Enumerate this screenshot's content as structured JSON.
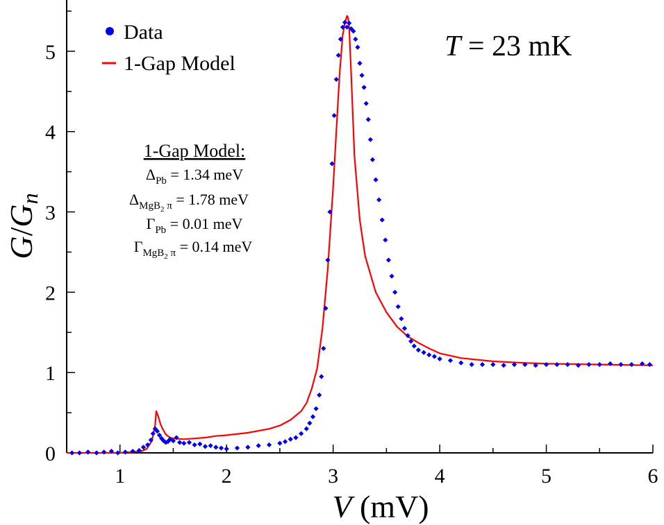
{
  "chart_data": {
    "type": "scatter",
    "title": "",
    "xlabel": {
      "var": "V",
      "unit": " (mV)"
    },
    "ylabel": {
      "num": "G",
      "slash": "/",
      "den": "G",
      "sub": "n"
    },
    "xlim": [
      0.5,
      6.0
    ],
    "ylim": [
      0,
      5.5
    ],
    "x_ticks": [
      1,
      2,
      3,
      4,
      5,
      6
    ],
    "y_ticks": [
      0,
      1,
      2,
      3,
      4,
      5
    ],
    "legend": {
      "placement": "top-left",
      "entries": [
        {
          "label": "Data",
          "marker": "dot"
        },
        {
          "label": "1-Gap Model",
          "marker": "line"
        }
      ]
    },
    "temperature": {
      "sym": "T",
      "rest": " = 23 mK"
    },
    "model_box": {
      "title": "1-Gap Model:",
      "lines": [
        {
          "sym": "Δ",
          "sub": "Pb",
          "subsub": "",
          "after": "",
          "rest": " = 1.34 meV"
        },
        {
          "sym": "Δ",
          "sub": "MgB",
          "subsub": "2",
          "after": " π",
          "rest": " = 1.78 meV"
        },
        {
          "sym": "Γ",
          "sub": "Pb",
          "subsub": "",
          "after": "",
          "rest": " = 0.01 meV"
        },
        {
          "sym": "Γ",
          "sub": "MgB",
          "subsub": "2",
          "after": " π",
          "rest": " = 0.14 meV"
        }
      ]
    },
    "series": [
      {
        "name": "Data",
        "kind": "scatter",
        "color": "#0000ee",
        "x": [
          0.55,
          0.62,
          0.7,
          0.78,
          0.85,
          0.92,
          0.98,
          1.05,
          1.12,
          1.18,
          1.22,
          1.26,
          1.29,
          1.31,
          1.33,
          1.35,
          1.37,
          1.39,
          1.41,
          1.43,
          1.45,
          1.47,
          1.5,
          1.53,
          1.56,
          1.6,
          1.65,
          1.7,
          1.75,
          1.8,
          1.85,
          1.9,
          1.95,
          2.0,
          2.1,
          2.2,
          2.3,
          2.4,
          2.5,
          2.55,
          2.6,
          2.65,
          2.7,
          2.75,
          2.78,
          2.81,
          2.84,
          2.87,
          2.89,
          2.91,
          2.93,
          2.95,
          2.97,
          2.99,
          3.01,
          3.03,
          3.05,
          3.07,
          3.09,
          3.11,
          3.13,
          3.15,
          3.17,
          3.19,
          3.21,
          3.23,
          3.25,
          3.27,
          3.29,
          3.31,
          3.33,
          3.35,
          3.37,
          3.4,
          3.43,
          3.46,
          3.49,
          3.52,
          3.55,
          3.58,
          3.61,
          3.64,
          3.67,
          3.7,
          3.73,
          3.76,
          3.8,
          3.85,
          3.9,
          3.95,
          4.0,
          4.1,
          4.2,
          4.3,
          4.4,
          4.5,
          4.6,
          4.7,
          4.8,
          4.9,
          5.0,
          5.1,
          5.2,
          5.3,
          5.4,
          5.5,
          5.6,
          5.7,
          5.8,
          5.9,
          5.97
        ],
        "y": [
          0.0,
          0.0,
          0.01,
          0.0,
          0.01,
          0.02,
          0.0,
          0.01,
          0.02,
          0.03,
          0.07,
          0.1,
          0.16,
          0.24,
          0.3,
          0.27,
          0.22,
          0.18,
          0.15,
          0.13,
          0.14,
          0.17,
          0.15,
          0.19,
          0.13,
          0.12,
          0.13,
          0.1,
          0.11,
          0.08,
          0.09,
          0.07,
          0.06,
          0.05,
          0.06,
          0.07,
          0.09,
          0.1,
          0.12,
          0.14,
          0.17,
          0.19,
          0.24,
          0.3,
          0.37,
          0.45,
          0.55,
          0.72,
          0.95,
          1.3,
          1.8,
          2.4,
          3.0,
          3.6,
          4.2,
          4.65,
          4.95,
          5.15,
          5.3,
          5.36,
          5.3,
          5.35,
          5.28,
          5.25,
          5.15,
          5.05,
          4.85,
          4.7,
          4.55,
          4.35,
          4.15,
          3.9,
          3.65,
          3.4,
          3.15,
          2.9,
          2.65,
          2.4,
          2.2,
          2.0,
          1.82,
          1.67,
          1.55,
          1.46,
          1.39,
          1.33,
          1.28,
          1.25,
          1.22,
          1.2,
          1.17,
          1.15,
          1.12,
          1.1,
          1.1,
          1.1,
          1.09,
          1.1,
          1.1,
          1.09,
          1.1,
          1.1,
          1.1,
          1.09,
          1.1,
          1.1,
          1.11,
          1.1,
          1.1,
          1.11,
          1.1
        ]
      },
      {
        "name": "1-Gap Model",
        "kind": "line",
        "color": "#ff0000",
        "x": [
          0.5,
          0.8,
          1.0,
          1.1,
          1.2,
          1.25,
          1.3,
          1.33,
          1.34,
          1.36,
          1.38,
          1.4,
          1.43,
          1.47,
          1.5,
          1.6,
          1.7,
          1.8,
          1.9,
          2.0,
          2.2,
          2.4,
          2.5,
          2.6,
          2.7,
          2.75,
          2.8,
          2.85,
          2.9,
          2.95,
          3.0,
          3.03,
          3.06,
          3.09,
          3.11,
          3.13,
          3.14,
          3.15,
          3.17,
          3.2,
          3.25,
          3.3,
          3.4,
          3.5,
          3.6,
          3.7,
          3.8,
          3.9,
          4.0,
          4.2,
          4.5,
          4.8,
          5.0,
          5.5,
          6.0
        ],
        "y": [
          0.0,
          0.0,
          0.0,
          0.01,
          0.02,
          0.05,
          0.15,
          0.35,
          0.52,
          0.45,
          0.36,
          0.3,
          0.23,
          0.19,
          0.18,
          0.17,
          0.18,
          0.19,
          0.21,
          0.22,
          0.25,
          0.3,
          0.34,
          0.41,
          0.52,
          0.62,
          0.8,
          1.05,
          1.55,
          2.3,
          3.3,
          4.0,
          4.7,
          5.2,
          5.35,
          5.44,
          5.42,
          5.3,
          4.7,
          3.7,
          2.9,
          2.45,
          2.0,
          1.75,
          1.57,
          1.45,
          1.37,
          1.3,
          1.24,
          1.18,
          1.14,
          1.12,
          1.11,
          1.1,
          1.09
        ]
      }
    ]
  }
}
